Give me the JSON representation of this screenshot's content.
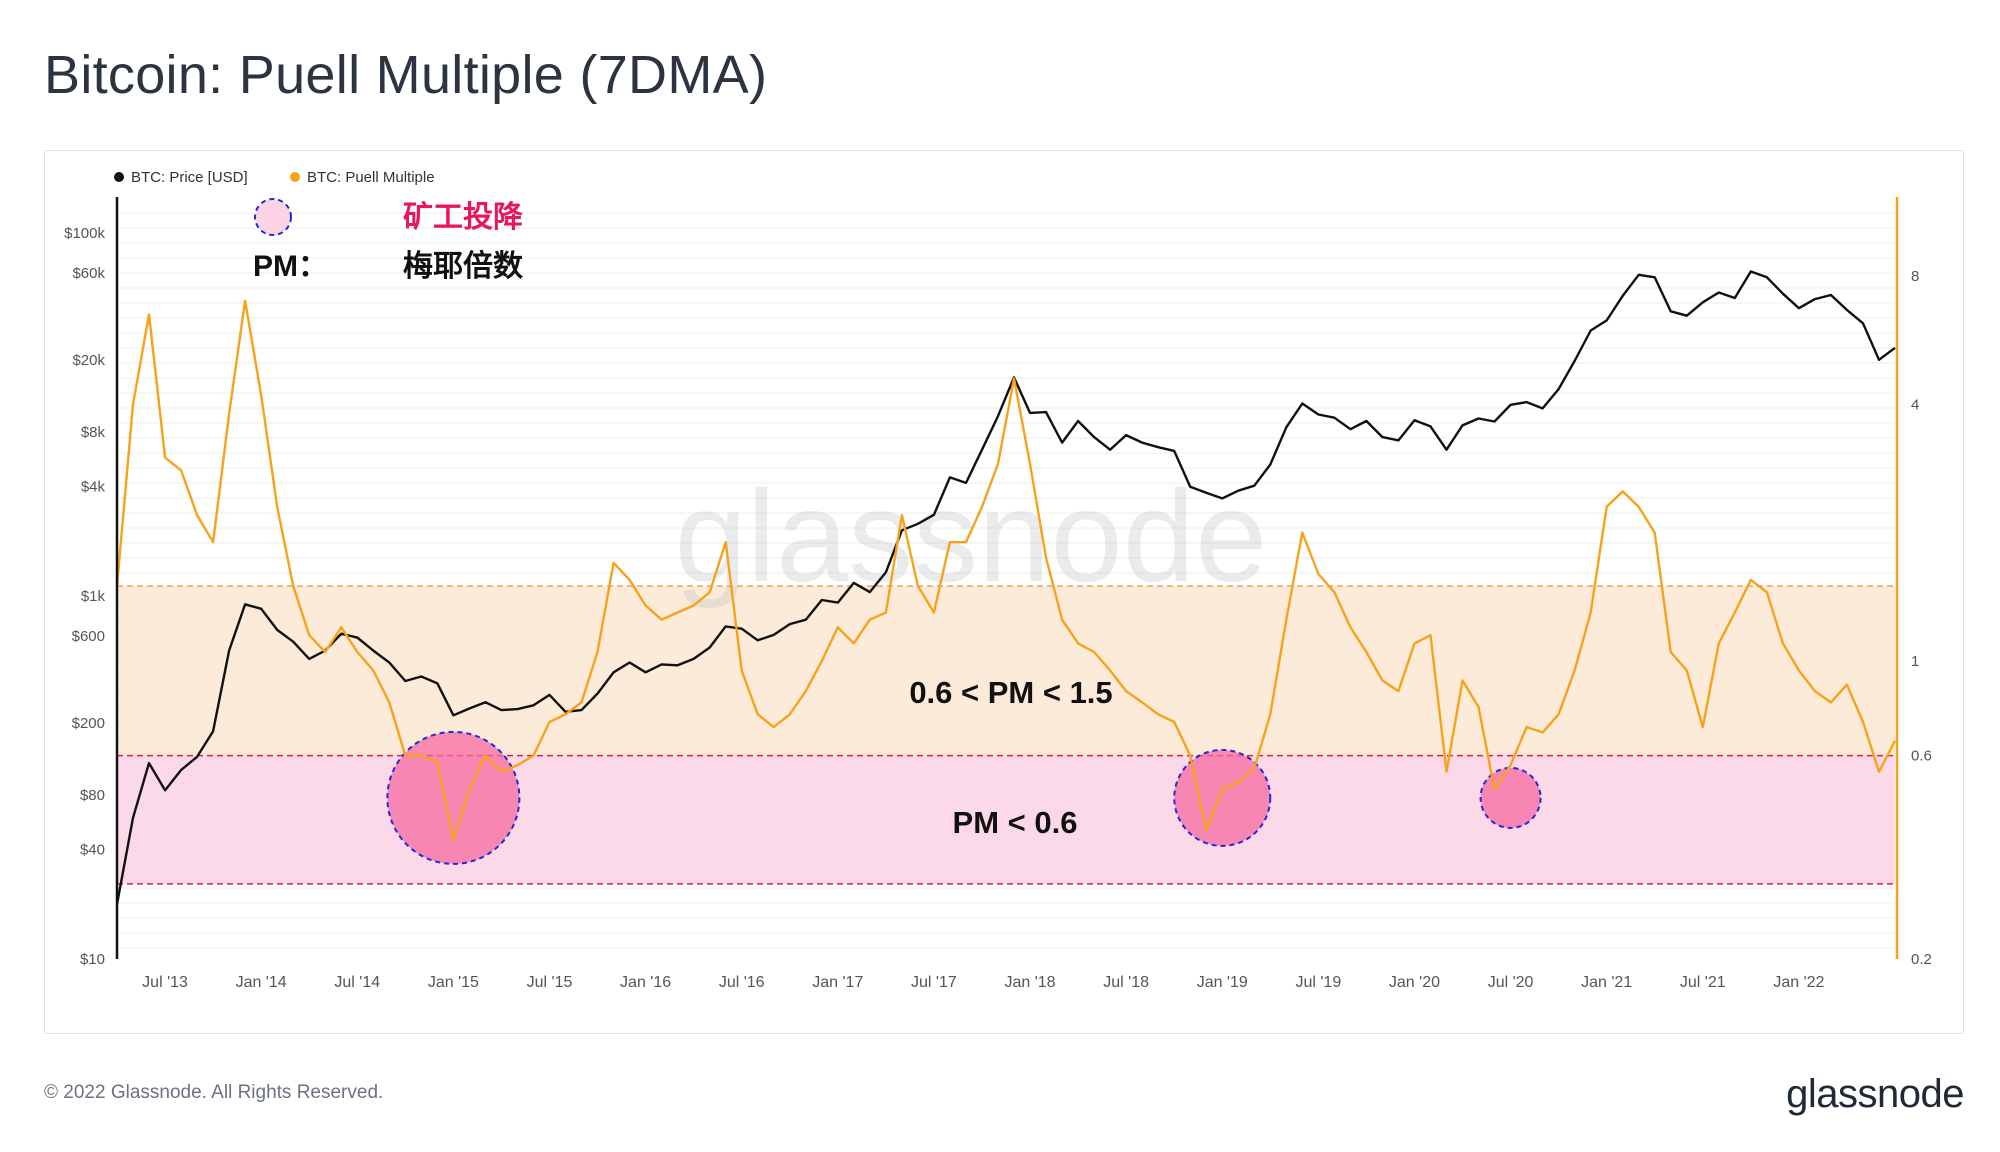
{
  "title": "Bitcoin: Puell Multiple (7DMA)",
  "footer": {
    "copyright": "© 2022 Glassnode. All Rights Reserved.",
    "brand": "glassnode"
  },
  "watermark": "glassnode",
  "annotations": {
    "legend_symbol_text": "矿工投降",
    "pm_label": "PM：",
    "pm_meaning": "梅耶倍数",
    "band_upper_label": "0.6 < PM < 1.5",
    "band_lower_label": "PM < 0.6"
  },
  "colors": {
    "price": "#111111",
    "puell": "#f7a21b",
    "band_upper": "#fde7d2",
    "band_lower": "#fcd5e5",
    "capitulation": "#f56aa0",
    "accent_red": "#e8175d",
    "dashed_blue": "#1d2bd8"
  },
  "chart_data": {
    "type": "line",
    "legend": [
      "BTC: Price [USD]",
      "BTC: Puell Multiple"
    ],
    "x_ticks": [
      "Jul '13",
      "Jan '14",
      "Jul '14",
      "Jan '15",
      "Jul '15",
      "Jan '16",
      "Jul '16",
      "Jan '17",
      "Jul '17",
      "Jan '18",
      "Jul '18",
      "Jan '19",
      "Jul '19",
      "Jan '20",
      "Jul '20",
      "Jan '21",
      "Jul '21",
      "Jan '22"
    ],
    "x_range": [
      "2013-04",
      "2022-07"
    ],
    "y_left": {
      "scale": "log",
      "range": [
        10,
        150000
      ],
      "ticks": [
        10,
        40,
        80,
        200,
        600,
        1000,
        4000,
        8000,
        20000,
        60000,
        100000
      ],
      "tick_labels": [
        "$10",
        "$40",
        "$80",
        "$200",
        "$600",
        "$1k",
        "$4k",
        "$8k",
        "$20k",
        "$60k",
        "$100k"
      ]
    },
    "y_right": {
      "scale": "log",
      "range": [
        0.2,
        12
      ],
      "ticks": [
        0.2,
        0.6,
        1,
        4,
        8
      ],
      "tick_labels": [
        "0.2",
        "0.6",
        "1",
        "4",
        "8"
      ]
    },
    "bands": [
      {
        "name": "0.6 < PM < 1.5",
        "from": 0.6,
        "to": 1.5
      },
      {
        "name": "PM < 0.6",
        "from": 0.3,
        "to": 0.6
      }
    ],
    "capitulation_periods": [
      "2015-01",
      "2019-01",
      "2020-07"
    ],
    "series": [
      {
        "name": "BTC: Price [USD]",
        "axis": "left",
        "points": [
          [
            "2013-04",
            20
          ],
          [
            "2013-05",
            60
          ],
          [
            "2013-06",
            120
          ],
          [
            "2013-07",
            85
          ],
          [
            "2013-08",
            110
          ],
          [
            "2013-09",
            130
          ],
          [
            "2013-10",
            180
          ],
          [
            "2013-11",
            500
          ],
          [
            "2013-12",
            900
          ],
          [
            "2014-01",
            850
          ],
          [
            "2014-02",
            650
          ],
          [
            "2014-03",
            560
          ],
          [
            "2014-04",
            450
          ],
          [
            "2014-05",
            500
          ],
          [
            "2014-06",
            620
          ],
          [
            "2014-07",
            590
          ],
          [
            "2014-08",
            500
          ],
          [
            "2014-09",
            430
          ],
          [
            "2014-10",
            340
          ],
          [
            "2014-11",
            360
          ],
          [
            "2014-12",
            330
          ],
          [
            "2015-01",
            220
          ],
          [
            "2015-02",
            240
          ],
          [
            "2015-03",
            260
          ],
          [
            "2015-04",
            235
          ],
          [
            "2015-05",
            238
          ],
          [
            "2015-06",
            250
          ],
          [
            "2015-07",
            285
          ],
          [
            "2015-08",
            230
          ],
          [
            "2015-09",
            235
          ],
          [
            "2015-10",
            290
          ],
          [
            "2015-11",
            380
          ],
          [
            "2015-12",
            430
          ],
          [
            "2016-01",
            380
          ],
          [
            "2016-02",
            420
          ],
          [
            "2016-03",
            415
          ],
          [
            "2016-04",
            450
          ],
          [
            "2016-05",
            520
          ],
          [
            "2016-06",
            680
          ],
          [
            "2016-07",
            660
          ],
          [
            "2016-08",
            570
          ],
          [
            "2016-09",
            610
          ],
          [
            "2016-10",
            700
          ],
          [
            "2016-11",
            740
          ],
          [
            "2016-12",
            950
          ],
          [
            "2017-01",
            920
          ],
          [
            "2017-02",
            1180
          ],
          [
            "2017-03",
            1050
          ],
          [
            "2017-04",
            1350
          ],
          [
            "2017-05",
            2300
          ],
          [
            "2017-06",
            2500
          ],
          [
            "2017-07",
            2800
          ],
          [
            "2017-08",
            4500
          ],
          [
            "2017-09",
            4200
          ],
          [
            "2017-10",
            6400
          ],
          [
            "2017-11",
            9800
          ],
          [
            "2017-12",
            16000
          ],
          [
            "2018-01",
            10200
          ],
          [
            "2018-02",
            10300
          ],
          [
            "2018-03",
            7000
          ],
          [
            "2018-04",
            9200
          ],
          [
            "2018-05",
            7500
          ],
          [
            "2018-06",
            6400
          ],
          [
            "2018-07",
            7700
          ],
          [
            "2018-08",
            7000
          ],
          [
            "2018-09",
            6600
          ],
          [
            "2018-10",
            6300
          ],
          [
            "2018-11",
            4000
          ],
          [
            "2018-12",
            3700
          ],
          [
            "2019-01",
            3450
          ],
          [
            "2019-02",
            3800
          ],
          [
            "2019-03",
            4050
          ],
          [
            "2019-04",
            5300
          ],
          [
            "2019-05",
            8500
          ],
          [
            "2019-06",
            11500
          ],
          [
            "2019-07",
            10000
          ],
          [
            "2019-08",
            9600
          ],
          [
            "2019-09",
            8300
          ],
          [
            "2019-10",
            9200
          ],
          [
            "2019-11",
            7500
          ],
          [
            "2019-12",
            7200
          ],
          [
            "2020-01",
            9300
          ],
          [
            "2020-02",
            8600
          ],
          [
            "2020-03",
            6400
          ],
          [
            "2020-04",
            8700
          ],
          [
            "2020-05",
            9500
          ],
          [
            "2020-06",
            9150
          ],
          [
            "2020-07",
            11300
          ],
          [
            "2020-08",
            11700
          ],
          [
            "2020-09",
            10800
          ],
          [
            "2020-10",
            13800
          ],
          [
            "2020-11",
            19700
          ],
          [
            "2020-12",
            29000
          ],
          [
            "2021-01",
            33000
          ],
          [
            "2021-02",
            45000
          ],
          [
            "2021-03",
            58800
          ],
          [
            "2021-04",
            57000
          ],
          [
            "2021-05",
            37000
          ],
          [
            "2021-06",
            35000
          ],
          [
            "2021-07",
            41500
          ],
          [
            "2021-08",
            47000
          ],
          [
            "2021-09",
            43800
          ],
          [
            "2021-10",
            61300
          ],
          [
            "2021-11",
            57000
          ],
          [
            "2021-12",
            46300
          ],
          [
            "2022-01",
            38500
          ],
          [
            "2022-02",
            43200
          ],
          [
            "2022-03",
            45500
          ],
          [
            "2022-04",
            37700
          ],
          [
            "2022-05",
            31800
          ],
          [
            "2022-06",
            20000
          ],
          [
            "2022-07",
            23300
          ]
        ]
      },
      {
        "name": "BTC: Puell Multiple",
        "axis": "right",
        "points": [
          [
            "2013-04",
            1.5
          ],
          [
            "2013-05",
            4.0
          ],
          [
            "2013-06",
            6.5
          ],
          [
            "2013-07",
            3.0
          ],
          [
            "2013-08",
            2.8
          ],
          [
            "2013-09",
            2.2
          ],
          [
            "2013-10",
            1.9
          ],
          [
            "2013-11",
            3.8
          ],
          [
            "2013-12",
            7.0
          ],
          [
            "2014-01",
            4.2
          ],
          [
            "2014-02",
            2.3
          ],
          [
            "2014-03",
            1.5
          ],
          [
            "2014-04",
            1.15
          ],
          [
            "2014-05",
            1.05
          ],
          [
            "2014-06",
            1.2
          ],
          [
            "2014-07",
            1.05
          ],
          [
            "2014-08",
            0.95
          ],
          [
            "2014-09",
            0.8
          ],
          [
            "2014-10",
            0.6
          ],
          [
            "2014-11",
            0.6
          ],
          [
            "2014-12",
            0.58
          ],
          [
            "2015-01",
            0.38
          ],
          [
            "2015-02",
            0.5
          ],
          [
            "2015-03",
            0.6
          ],
          [
            "2015-04",
            0.55
          ],
          [
            "2015-05",
            0.57
          ],
          [
            "2015-06",
            0.6
          ],
          [
            "2015-07",
            0.72
          ],
          [
            "2015-08",
            0.75
          ],
          [
            "2015-09",
            0.8
          ],
          [
            "2015-10",
            1.05
          ],
          [
            "2015-11",
            1.7
          ],
          [
            "2015-12",
            1.55
          ],
          [
            "2016-01",
            1.35
          ],
          [
            "2016-02",
            1.25
          ],
          [
            "2016-03",
            1.3
          ],
          [
            "2016-04",
            1.35
          ],
          [
            "2016-05",
            1.45
          ],
          [
            "2016-06",
            1.9
          ],
          [
            "2016-07",
            0.95
          ],
          [
            "2016-08",
            0.75
          ],
          [
            "2016-09",
            0.7
          ],
          [
            "2016-10",
            0.75
          ],
          [
            "2016-11",
            0.85
          ],
          [
            "2016-12",
            1.0
          ],
          [
            "2017-01",
            1.2
          ],
          [
            "2017-02",
            1.1
          ],
          [
            "2017-03",
            1.25
          ],
          [
            "2017-04",
            1.3
          ],
          [
            "2017-05",
            2.2
          ],
          [
            "2017-06",
            1.5
          ],
          [
            "2017-07",
            1.3
          ],
          [
            "2017-08",
            1.9
          ],
          [
            "2017-09",
            1.9
          ],
          [
            "2017-10",
            2.3
          ],
          [
            "2017-11",
            2.9
          ],
          [
            "2017-12",
            4.6
          ],
          [
            "2018-01",
            2.9
          ],
          [
            "2018-02",
            1.75
          ],
          [
            "2018-03",
            1.25
          ],
          [
            "2018-04",
            1.1
          ],
          [
            "2018-05",
            1.05
          ],
          [
            "2018-06",
            0.95
          ],
          [
            "2018-07",
            0.85
          ],
          [
            "2018-08",
            0.8
          ],
          [
            "2018-09",
            0.75
          ],
          [
            "2018-10",
            0.72
          ],
          [
            "2018-11",
            0.6
          ],
          [
            "2018-12",
            0.4
          ],
          [
            "2019-01",
            0.5
          ],
          [
            "2019-02",
            0.52
          ],
          [
            "2019-03",
            0.56
          ],
          [
            "2019-04",
            0.75
          ],
          [
            "2019-05",
            1.25
          ],
          [
            "2019-06",
            2.0
          ],
          [
            "2019-07",
            1.6
          ],
          [
            "2019-08",
            1.45
          ],
          [
            "2019-09",
            1.2
          ],
          [
            "2019-10",
            1.05
          ],
          [
            "2019-11",
            0.9
          ],
          [
            "2019-12",
            0.85
          ],
          [
            "2020-01",
            1.1
          ],
          [
            "2020-02",
            1.15
          ],
          [
            "2020-03",
            0.55
          ],
          [
            "2020-04",
            0.9
          ],
          [
            "2020-05",
            0.78
          ],
          [
            "2020-06",
            0.5
          ],
          [
            "2020-07",
            0.57
          ],
          [
            "2020-08",
            0.7
          ],
          [
            "2020-09",
            0.68
          ],
          [
            "2020-10",
            0.75
          ],
          [
            "2020-11",
            0.95
          ],
          [
            "2020-12",
            1.3
          ],
          [
            "2021-01",
            2.3
          ],
          [
            "2021-02",
            2.5
          ],
          [
            "2021-03",
            2.3
          ],
          [
            "2021-04",
            2.0
          ],
          [
            "2021-05",
            1.05
          ],
          [
            "2021-06",
            0.95
          ],
          [
            "2021-07",
            0.7
          ],
          [
            "2021-08",
            1.1
          ],
          [
            "2021-09",
            1.3
          ],
          [
            "2021-10",
            1.55
          ],
          [
            "2021-11",
            1.45
          ],
          [
            "2021-12",
            1.1
          ],
          [
            "2022-01",
            0.95
          ],
          [
            "2022-02",
            0.85
          ],
          [
            "2022-03",
            0.8
          ],
          [
            "2022-04",
            0.88
          ],
          [
            "2022-05",
            0.72
          ],
          [
            "2022-06",
            0.55
          ],
          [
            "2022-07",
            0.65
          ]
        ]
      }
    ]
  }
}
